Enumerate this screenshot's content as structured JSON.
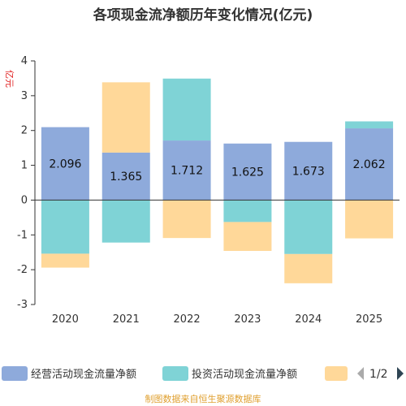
{
  "chart_data": {
    "type": "bar",
    "stacked": true,
    "title": "各项现金流净额历年变化情况(亿元)",
    "ylabel": "亿元",
    "categories": [
      "2020",
      "2021",
      "2022",
      "2023",
      "2024",
      "2025"
    ],
    "ylim": [
      -3,
      4
    ],
    "yticks": [
      -3,
      -2,
      -1,
      0,
      1,
      2,
      3,
      4
    ],
    "series": [
      {
        "name": "经营活动现金流量净额",
        "color": "#8eaadb",
        "values": [
          2.096,
          1.365,
          1.712,
          1.625,
          1.673,
          2.062
        ]
      },
      {
        "name": "投资活动现金流量净额",
        "color": "#7fd3d6",
        "values": [
          -1.54,
          -1.22,
          1.78,
          -0.63,
          -1.55,
          0.2
        ]
      },
      {
        "name": "",
        "color": "#ffd899",
        "values": [
          -0.4,
          2.02,
          -1.09,
          -0.83,
          -0.84,
          -1.1
        ]
      }
    ],
    "data_labels": [
      "2.096",
      "1.365",
      "1.712",
      "1.625",
      "1.673",
      "2.062"
    ],
    "legend": {
      "position": "bottom",
      "page": "1/2"
    }
  },
  "footer": "制图数据来自恒生聚源数据库"
}
